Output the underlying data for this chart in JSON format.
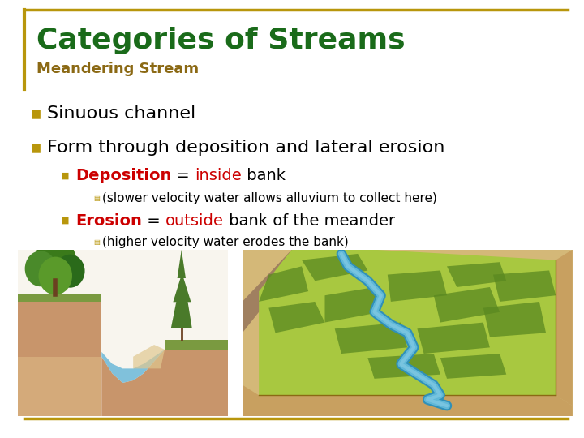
{
  "title": "Categories of Streams",
  "subtitle": "Meandering Stream",
  "title_color": "#1a6b1a",
  "subtitle_color": "#8B6914",
  "background_color": "#ffffff",
  "border_color": "#b8960c",
  "bullet_color": "#b8960c",
  "body_text_color": "#000000",
  "bullet1": "Sinuous channel",
  "bullet2": "Form through deposition and lateral erosion",
  "sub_bullet1_label_bold": "Deposition",
  "sub_bullet1_label_color": "#cc0000",
  "sub_bullet1_mid": " = ",
  "sub_bullet1_colored": "inside",
  "sub_bullet1_colored_color": "#cc0000",
  "sub_bullet1_rest": " bank",
  "sub_sub_bullet1": "(slower velocity water allows alluvium to collect here)",
  "sub_bullet2_label_bold": "Erosion",
  "sub_bullet2_label_color": "#cc0000",
  "sub_bullet2_mid": " = ",
  "sub_bullet2_colored": "outside",
  "sub_bullet2_colored_color": "#cc0000",
  "sub_bullet2_rest": " bank of the meander",
  "sub_sub_bullet2": "(higher velocity water erodes the bank)",
  "title_fontsize": 26,
  "subtitle_fontsize": 13,
  "bullet_fontsize": 16,
  "sub_bullet_fontsize": 14,
  "sub_sub_bullet_fontsize": 11
}
